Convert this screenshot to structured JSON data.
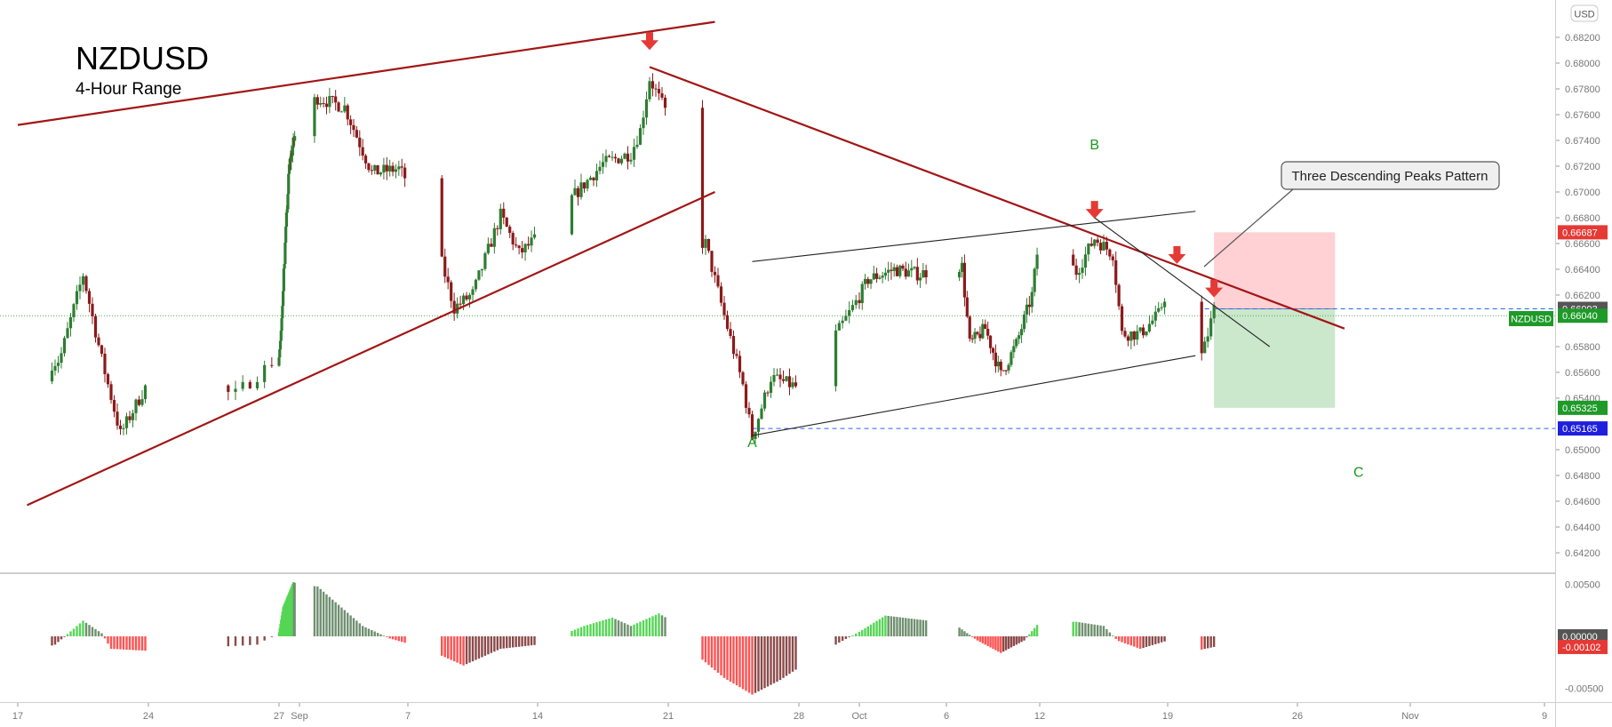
{
  "symbol": {
    "title": "NZDUSD",
    "subtitle": "4-Hour Range",
    "currency": "USD",
    "tag": "NZDUSD"
  },
  "annotation": {
    "callout": "Three Descending Peaks Pattern",
    "wave_labels": [
      {
        "text": "A",
        "date": "2019-09-25T12:00",
        "price": 0.6502,
        "color": "#1b9a1b"
      },
      {
        "text": "B",
        "date": "2019-10-15T00:00",
        "price": 0.6733,
        "color": "#1b9a1b"
      },
      {
        "text": "C",
        "date": "2019-10-29T06:00",
        "price": 0.6479,
        "color": "#1b9a1b"
      }
    ],
    "peak_arrows": [
      {
        "date": "2019-09-20T00:00",
        "price": 0.6824
      },
      {
        "date": "2019-10-15T00:00",
        "price": 0.6693
      },
      {
        "date": "2019-10-19T12:00",
        "price": 0.6658
      },
      {
        "date": "2019-10-21T12:00",
        "price": 0.6632
      }
    ]
  },
  "price_labels": [
    {
      "value": "0.66687",
      "price": 0.66687,
      "bg": "#e53935"
    },
    {
      "value": "0.66093",
      "price": 0.66093,
      "bg": "#555555"
    },
    {
      "value": "0.66040",
      "price": 0.6604,
      "bg": "#1e9a28"
    },
    {
      "value": "0.65325",
      "price": 0.65325,
      "bg": "#1e9a28"
    },
    {
      "value": "0.65165",
      "price": 0.65165,
      "bg": "#1f1fe0"
    }
  ],
  "indicator_labels": [
    {
      "value": "0.00000",
      "level": 0.0,
      "bg": "#555555"
    },
    {
      "value": "-0.00102",
      "level": -0.00102,
      "bg": "#e53935"
    }
  ],
  "colors": {
    "bull": "#26a69a",
    "bear": "#b71c1c",
    "candle_bull": "#2e7d32",
    "candle_bear": "#8b1a1a",
    "trend": "#a31515",
    "hist_up_strong": "#55d655",
    "hist_up_weak": "#6f8f6f",
    "hist_down_strong": "#ff5252",
    "hist_down_weak": "#8b4a4a",
    "stop_zone": "#ffcdd2",
    "target_zone": "#c8e6c9"
  },
  "chart_data": {
    "type": "candlestick",
    "timeframe": "4H",
    "x_range": [
      "2019-08-17T00:00",
      "2019-11-09T00:00"
    ],
    "x_ticks": [
      {
        "label": "17",
        "date": "2019-08-17"
      },
      {
        "label": "24",
        "date": "2019-08-24"
      },
      {
        "label": "27",
        "date": "2019-08-27"
      },
      {
        "label": "Sep",
        "date": "2019-09-01"
      },
      {
        "label": "7",
        "date": "2019-09-07"
      },
      {
        "label": "14",
        "date": "2019-09-14"
      },
      {
        "label": "21",
        "date": "2019-09-21"
      },
      {
        "label": "28",
        "date": "2019-09-28"
      },
      {
        "label": "Oct",
        "date": "2019-10-01"
      },
      {
        "label": "6",
        "date": "2019-10-06"
      },
      {
        "label": "12",
        "date": "2019-10-12"
      },
      {
        "label": "19",
        "date": "2019-10-19"
      },
      {
        "label": "26",
        "date": "2019-10-26"
      },
      {
        "label": "Nov",
        "date": "2019-11-01"
      },
      {
        "label": "9",
        "date": "2019-11-09"
      }
    ],
    "y_range": [
      0.6414,
      0.6848
    ],
    "y_ticks": [
      "0.68200",
      "0.68000",
      "0.67800",
      "0.67600",
      "0.67400",
      "0.67200",
      "0.67000",
      "0.66800",
      "0.66600",
      "0.66400",
      "0.66200",
      "0.65800",
      "0.65600",
      "0.65400",
      "0.65000",
      "0.64800",
      "0.64600",
      "0.64400",
      "0.64200"
    ],
    "anchors": [
      {
        "date": "2019-08-17T00:00",
        "close": 0.6553
      },
      {
        "date": "2019-08-19T06:00",
        "close": 0.657
      },
      {
        "date": "2019-08-20T12:00",
        "close": 0.6636
      },
      {
        "date": "2019-08-21T12:00",
        "close": 0.657
      },
      {
        "date": "2019-08-22T12:00",
        "close": 0.6512
      },
      {
        "date": "2019-08-24T00:00",
        "close": 0.6553
      },
      {
        "date": "2019-08-26T00:00",
        "close": 0.6543
      },
      {
        "date": "2019-08-27T12:00",
        "close": 0.6588
      },
      {
        "date": "2019-08-28T00:00",
        "close": 0.6628
      },
      {
        "date": "2019-08-29T12:00",
        "close": 0.672
      },
      {
        "date": "2019-08-31T00:00",
        "close": 0.6746
      },
      {
        "date": "2019-09-02T00:00",
        "close": 0.6773
      },
      {
        "date": "2019-09-03T12:00",
        "close": 0.6766
      },
      {
        "date": "2019-09-05T00:00",
        "close": 0.6715
      },
      {
        "date": "2019-09-06T12:00",
        "close": 0.6718
      },
      {
        "date": "2019-09-08T00:00",
        "close": 0.6688
      },
      {
        "date": "2019-09-09T12:00",
        "close": 0.661
      },
      {
        "date": "2019-09-10T12:00",
        "close": 0.6621
      },
      {
        "date": "2019-09-12T00:00",
        "close": 0.6682
      },
      {
        "date": "2019-09-13T00:00",
        "close": 0.6652
      },
      {
        "date": "2019-09-14T06:00",
        "close": 0.6668
      },
      {
        "date": "2019-09-16T00:00",
        "close": 0.6698
      },
      {
        "date": "2019-09-17T12:00",
        "close": 0.6722
      },
      {
        "date": "2019-09-19T00:00",
        "close": 0.673
      },
      {
        "date": "2019-09-19T12:00",
        "close": 0.6748
      },
      {
        "date": "2019-09-20T00:00",
        "close": 0.6788
      },
      {
        "date": "2019-09-21T00:00",
        "close": 0.6758
      },
      {
        "date": "2019-09-21T12:00",
        "close": 0.668
      },
      {
        "date": "2019-09-22T00:00",
        "close": 0.6662
      },
      {
        "date": "2019-09-23T00:00",
        "close": 0.666
      },
      {
        "date": "2019-09-24T00:00",
        "close": 0.6604
      },
      {
        "date": "2019-09-25T00:00",
        "close": 0.655
      },
      {
        "date": "2019-09-25T12:00",
        "close": 0.651
      },
      {
        "date": "2019-09-26T12:00",
        "close": 0.6556
      },
      {
        "date": "2019-09-28T00:00",
        "close": 0.6548
      },
      {
        "date": "2019-09-29T00:00",
        "close": 0.6568
      },
      {
        "date": "2019-09-30T12:00",
        "close": 0.6606
      },
      {
        "date": "2019-10-01T12:00",
        "close": 0.6632
      },
      {
        "date": "2019-10-03T00:00",
        "close": 0.664
      },
      {
        "date": "2019-10-04T12:00",
        "close": 0.6636
      },
      {
        "date": "2019-10-06T00:00",
        "close": 0.6645
      },
      {
        "date": "2019-10-07T00:00",
        "close": 0.6642
      },
      {
        "date": "2019-10-07T12:00",
        "close": 0.6582
      },
      {
        "date": "2019-10-08T12:00",
        "close": 0.6594
      },
      {
        "date": "2019-10-09T12:00",
        "close": 0.6558
      },
      {
        "date": "2019-10-10T12:00",
        "close": 0.6582
      },
      {
        "date": "2019-10-11T12:00",
        "close": 0.662
      },
      {
        "date": "2019-10-12T00:00",
        "close": 0.6668
      },
      {
        "date": "2019-10-13T00:00",
        "close": 0.6655
      },
      {
        "date": "2019-10-14T00:00",
        "close": 0.6638
      },
      {
        "date": "2019-10-15T00:00",
        "close": 0.6664
      },
      {
        "date": "2019-10-16T00:00",
        "close": 0.6652
      },
      {
        "date": "2019-10-16T12:00",
        "close": 0.659
      },
      {
        "date": "2019-10-17T12:00",
        "close": 0.659
      },
      {
        "date": "2019-10-18T12:00",
        "close": 0.6605
      },
      {
        "date": "2019-10-19T12:00",
        "close": 0.6646
      },
      {
        "date": "2019-10-20T00:00",
        "close": 0.6585
      },
      {
        "date": "2019-10-20T12:00",
        "close": 0.656
      },
      {
        "date": "2019-10-21T00:00",
        "close": 0.658
      },
      {
        "date": "2019-10-21T12:00",
        "close": 0.6609
      }
    ],
    "trendlines": [
      {
        "name": "upper-channel",
        "from": {
          "date": "2019-08-17T00:00",
          "price": 0.6752
        },
        "to": {
          "date": "2019-09-23T12:00",
          "price": 0.6832
        }
      },
      {
        "name": "lower-channel",
        "from": {
          "date": "2019-08-17T12:00",
          "price": 0.6457
        },
        "to": {
          "date": "2019-09-23T12:00",
          "price": 0.67
        }
      },
      {
        "name": "descending-resistance",
        "from": {
          "date": "2019-09-20T00:00",
          "price": 0.6797
        },
        "to": {
          "date": "2019-10-28T12:00",
          "price": 0.6594
        }
      },
      {
        "name": "triangle-upper",
        "from": {
          "date": "2019-09-25T12:00",
          "price": 0.6646
        },
        "to": {
          "date": "2019-10-20T12:00",
          "price": 0.6685
        }
      },
      {
        "name": "triangle-lower",
        "from": {
          "date": "2019-09-25T12:00",
          "price": 0.6511
        },
        "to": {
          "date": "2019-10-20T12:00",
          "price": 0.6573
        }
      },
      {
        "name": "b-wave-descent",
        "from": {
          "date": "2019-10-15T00:00",
          "price": 0.668
        },
        "to": {
          "date": "2019-10-24T12:00",
          "price": 0.658
        }
      }
    ],
    "levels": [
      {
        "name": "current-price",
        "price": 0.6604,
        "style": "dotted",
        "color": "#4caf50"
      },
      {
        "name": "entry",
        "price": 0.66093,
        "style": "dashed",
        "color": "#2962ff"
      },
      {
        "name": "wave-a-low",
        "price": 0.65165,
        "style": "dashed",
        "color": "#2962ff"
      }
    ],
    "position": {
      "start": "2019-10-21T12:00",
      "end": "2019-10-28T00:00",
      "entry": 0.66093,
      "stop": 0.66687,
      "target": 0.65325
    },
    "indicator": {
      "type": "histogram",
      "y_range": [
        -0.0055,
        0.0055
      ],
      "y_ticks": [
        "0.00500",
        "-0.00500"
      ],
      "anchors": [
        {
          "date": "2019-08-17T00:00",
          "v": -0.0018
        },
        {
          "date": "2019-08-19T00:00",
          "v": -0.0008
        },
        {
          "date": "2019-08-20T12:00",
          "v": 0.0015
        },
        {
          "date": "2019-08-21T12:00",
          "v": 0.0003
        },
        {
          "date": "2019-08-22T00:00",
          "v": -0.0012
        },
        {
          "date": "2019-08-24T00:00",
          "v": -0.0014
        },
        {
          "date": "2019-08-26T12:00",
          "v": -0.0008
        },
        {
          "date": "2019-08-28T00:00",
          "v": 0.0028
        },
        {
          "date": "2019-08-30T12:00",
          "v": 0.0052
        },
        {
          "date": "2019-09-02T00:00",
          "v": 0.0048
        },
        {
          "date": "2019-09-04T12:00",
          "v": 0.001
        },
        {
          "date": "2019-09-06T00:00",
          "v": -0.0002
        },
        {
          "date": "2019-09-08T00:00",
          "v": -0.0012
        },
        {
          "date": "2019-09-10T00:00",
          "v": -0.0028
        },
        {
          "date": "2019-09-12T00:00",
          "v": -0.0012
        },
        {
          "date": "2019-09-14T00:00",
          "v": -0.0008
        },
        {
          "date": "2019-09-16T12:00",
          "v": 0.001
        },
        {
          "date": "2019-09-18T00:00",
          "v": 0.0018
        },
        {
          "date": "2019-09-19T00:00",
          "v": 0.001
        },
        {
          "date": "2019-09-20T12:00",
          "v": 0.0022
        },
        {
          "date": "2019-09-21T06:00",
          "v": 0.0014
        },
        {
          "date": "2019-09-22T00:00",
          "v": -0.001
        },
        {
          "date": "2019-09-24T00:00",
          "v": -0.004
        },
        {
          "date": "2019-09-25T12:00",
          "v": -0.0056
        },
        {
          "date": "2019-09-27T00:00",
          "v": -0.0042
        },
        {
          "date": "2019-09-30T00:00",
          "v": -0.0006
        },
        {
          "date": "2019-10-02T12:00",
          "v": 0.002
        },
        {
          "date": "2019-10-04T12:00",
          "v": 0.0016
        },
        {
          "date": "2019-10-06T12:00",
          "v": 0.0012
        },
        {
          "date": "2019-10-08T00:00",
          "v": -0.0004
        },
        {
          "date": "2019-10-09T12:00",
          "v": -0.0016
        },
        {
          "date": "2019-10-11T00:00",
          "v": -0.0004
        },
        {
          "date": "2019-10-12T00:00",
          "v": 0.0014
        },
        {
          "date": "2019-10-14T00:00",
          "v": 0.0014
        },
        {
          "date": "2019-10-15T12:00",
          "v": 0.001
        },
        {
          "date": "2019-10-16T06:00",
          "v": -0.0004
        },
        {
          "date": "2019-10-17T12:00",
          "v": -0.0012
        },
        {
          "date": "2019-10-19T00:00",
          "v": -0.0004
        },
        {
          "date": "2019-10-20T12:00",
          "v": -0.0014
        },
        {
          "date": "2019-10-21T12:00",
          "v": -0.00102
        }
      ]
    }
  }
}
